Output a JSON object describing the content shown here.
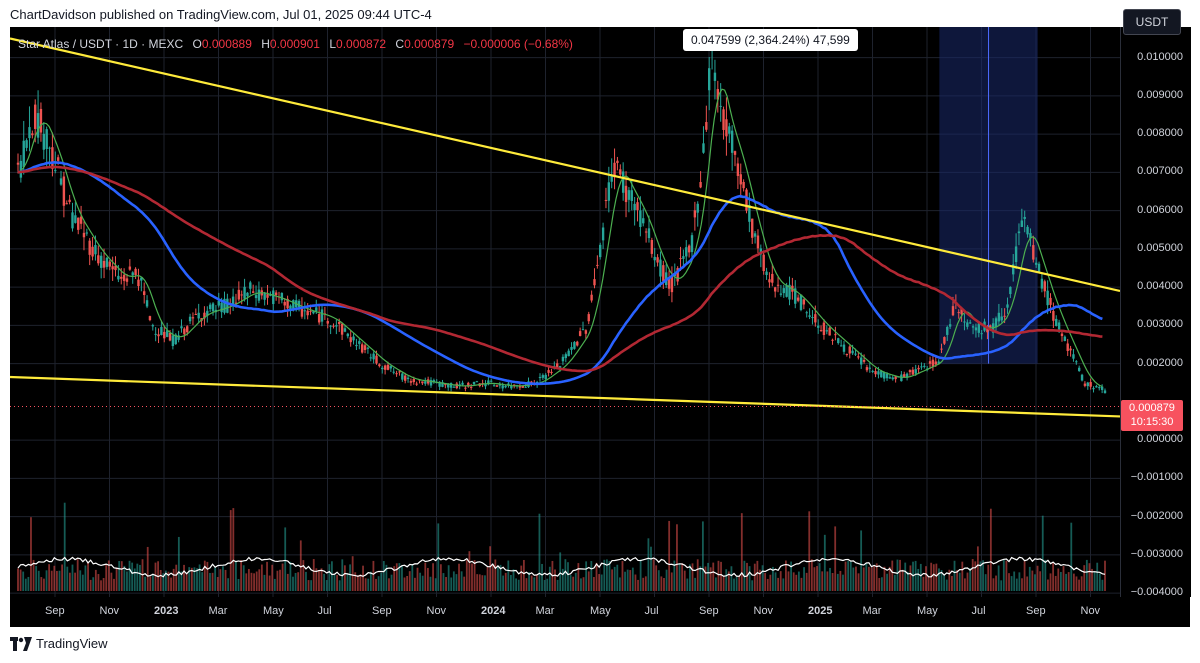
{
  "header": {
    "text": "ChartDavidson published on TradingView.com, Jul 01, 2025 09:44 UTC-4"
  },
  "legend": {
    "symbol": "Star Atlas / USDT · 1D · MEXC",
    "o_label": "O",
    "o_value": "0.000889",
    "h_label": "H",
    "h_value": "0.000901",
    "l_label": "L",
    "l_value": "0.000872",
    "c_label": "C",
    "c_value": "0.000879",
    "change": "−0.000006 (−0.68%)"
  },
  "measure_label": "0.047599 (2,364.24%) 47,599",
  "currency_button": "USDT",
  "price_badge": {
    "price": "0.000879",
    "countdown": "10:15:30"
  },
  "footer": {
    "brand": "TradingView"
  },
  "colors": {
    "background": "#000000",
    "grid": "#1e222d",
    "candle_up": "#26a69a",
    "candle_down": "#ef5350",
    "trendline": "#ffeb3b",
    "ma_fast": "#4caf50",
    "ma_slow_blue": "#2962ff",
    "ma_slow_red": "#b22833",
    "volume_ma": "#ffffff",
    "measure_zone": "#1a2a6c",
    "last_price": "#f7525f"
  },
  "chart_data": {
    "type": "line",
    "y_ticks": [
      "0.010000",
      "0.009000",
      "0.008000",
      "0.007000",
      "0.006000",
      "0.005000",
      "0.004000",
      "0.003000",
      "0.002000",
      "0.000000",
      "−0.001000",
      "−0.002000",
      "−0.003000",
      "−0.004000"
    ],
    "ylim": [
      -0.0041,
      0.0108
    ],
    "x_ticks": [
      {
        "label": "Sep",
        "year": false
      },
      {
        "label": "Nov",
        "year": false
      },
      {
        "label": "2023",
        "year": true
      },
      {
        "label": "Mar",
        "year": false
      },
      {
        "label": "May",
        "year": false
      },
      {
        "label": "Jul",
        "year": false
      },
      {
        "label": "Sep",
        "year": false
      },
      {
        "label": "Nov",
        "year": false
      },
      {
        "label": "2024",
        "year": true
      },
      {
        "label": "Mar",
        "year": false
      },
      {
        "label": "May",
        "year": false
      },
      {
        "label": "Jul",
        "year": false
      },
      {
        "label": "Sep",
        "year": false
      },
      {
        "label": "Nov",
        "year": false
      },
      {
        "label": "2025",
        "year": true
      },
      {
        "label": "Mar",
        "year": false
      },
      {
        "label": "May",
        "year": false
      },
      {
        "label": "Jul",
        "year": false
      },
      {
        "label": "Sep",
        "year": false
      },
      {
        "label": "Nov",
        "year": false
      }
    ],
    "x_range_months": [
      0,
      21
    ],
    "price": [
      [
        0.0,
        0.007
      ],
      [
        0.3,
        0.0086
      ],
      [
        0.6,
        0.0078
      ],
      [
        1.0,
        0.006
      ],
      [
        1.5,
        0.0049
      ],
      [
        2.0,
        0.0042
      ],
      [
        2.3,
        0.0044
      ],
      [
        2.6,
        0.003
      ],
      [
        3.0,
        0.0026
      ],
      [
        3.5,
        0.0033
      ],
      [
        4.0,
        0.0035
      ],
      [
        4.5,
        0.0039
      ],
      [
        5.0,
        0.0037
      ],
      [
        5.5,
        0.0034
      ],
      [
        6.0,
        0.0032
      ],
      [
        6.5,
        0.0026
      ],
      [
        7.0,
        0.002
      ],
      [
        7.5,
        0.0016
      ],
      [
        8.0,
        0.0015
      ],
      [
        8.5,
        0.0014
      ],
      [
        9.0,
        0.0015
      ],
      [
        9.5,
        0.0014
      ],
      [
        10.0,
        0.0015
      ],
      [
        10.5,
        0.002
      ],
      [
        11.0,
        0.003
      ],
      [
        11.3,
        0.0055
      ],
      [
        11.5,
        0.0073
      ],
      [
        11.8,
        0.0064
      ],
      [
        12.0,
        0.006
      ],
      [
        12.3,
        0.0048
      ],
      [
        12.6,
        0.004
      ],
      [
        13.0,
        0.005
      ],
      [
        13.2,
        0.007
      ],
      [
        13.4,
        0.0101
      ],
      [
        13.6,
        0.0085
      ],
      [
        13.9,
        0.0073
      ],
      [
        14.2,
        0.0055
      ],
      [
        14.5,
        0.0042
      ],
      [
        15.0,
        0.0038
      ],
      [
        15.5,
        0.003
      ],
      [
        16.0,
        0.0024
      ],
      [
        16.5,
        0.0018
      ],
      [
        17.0,
        0.0016
      ],
      [
        17.5,
        0.0019
      ],
      [
        17.8,
        0.0021
      ],
      [
        18.1,
        0.0036
      ],
      [
        18.4,
        0.003
      ],
      [
        18.8,
        0.0029
      ],
      [
        19.1,
        0.0035
      ],
      [
        19.4,
        0.0058
      ],
      [
        19.7,
        0.0045
      ],
      [
        20.0,
        0.0033
      ],
      [
        20.3,
        0.0024
      ],
      [
        20.6,
        0.0015
      ],
      [
        21.0,
        0.0013
      ]
    ],
    "series": [
      {
        "name": "",
        "points": []
      }
    ],
    "last_price": 0.000879,
    "range_box": {
      "x_from": 17.8,
      "x_to": 19.7,
      "y_from": 0.002,
      "y_to": 0.0108
    },
    "grid": true
  }
}
